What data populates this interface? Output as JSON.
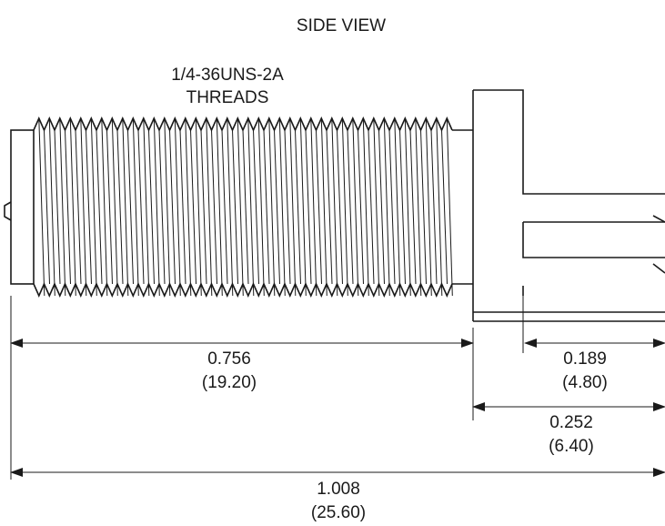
{
  "title": "SIDE VIEW",
  "thread_spec": {
    "line1": "1/4-36UNS-2A",
    "line2": "THREADS"
  },
  "dimensions": [
    {
      "id": "threaded-length",
      "inch": "0.756",
      "mm": "(19.20)"
    },
    {
      "id": "pin-length",
      "inch": "0.189",
      "mm": "(4.80)"
    },
    {
      "id": "flange-to-end",
      "inch": "0.252",
      "mm": "(6.40)"
    },
    {
      "id": "overall-length",
      "inch": "1.008",
      "mm": "(25.60)"
    }
  ]
}
